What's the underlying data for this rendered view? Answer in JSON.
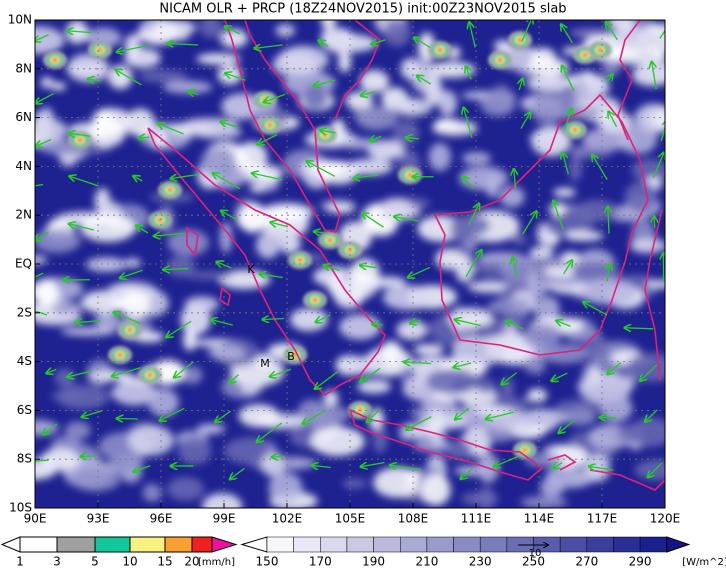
{
  "title": "NICAM OLR + PRCP (18Z24NOV2015) init:00Z23NOV2015 slab",
  "map": {
    "lon_labels": [
      "90E",
      "93E",
      "96E",
      "99E",
      "102E",
      "105E",
      "108E",
      "111E",
      "114E",
      "117E",
      "120E"
    ],
    "lat_labels": [
      "10N",
      "8N",
      "6N",
      "4N",
      "2N",
      "EQ",
      "2S",
      "4S",
      "6S",
      "8S",
      "10S"
    ],
    "places": [
      "K",
      "M",
      "B"
    ],
    "vector_reference": "10"
  },
  "colorbars": [
    {
      "labels": [
        "1",
        "3",
        "5",
        "10",
        "15",
        "20"
      ],
      "unit": "[mm/h]"
    },
    {
      "labels": [
        "150",
        "170",
        "190",
        "210",
        "230",
        "250",
        "270",
        "290"
      ],
      "unit": "[W/m^2]"
    }
  ]
}
